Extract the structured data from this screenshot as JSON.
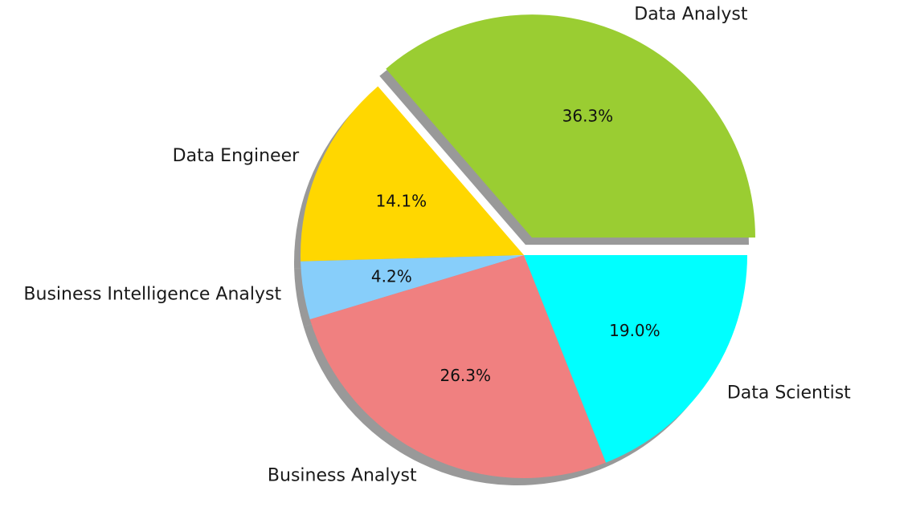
{
  "chart_data": {
    "type": "pie",
    "categories": [
      "Data Analyst",
      "Data Engineer",
      "Business Intelligence Analyst",
      "Business Analyst",
      "Data Scientist"
    ],
    "values": [
      36.3,
      14.1,
      4.2,
      26.3,
      19.0
    ],
    "percent_labels": [
      "36.3%",
      "14.1%",
      "4.2%",
      "26.3%",
      "19.0%"
    ],
    "colors": [
      "#9acd32",
      "#ffd700",
      "#87cefa",
      "#f08080",
      "#00ffff"
    ],
    "start_angle_deg": 0,
    "direction": "counterclockwise",
    "exploded": [
      "Data Analyst"
    ],
    "shadow": true,
    "title": "",
    "legend": false
  }
}
